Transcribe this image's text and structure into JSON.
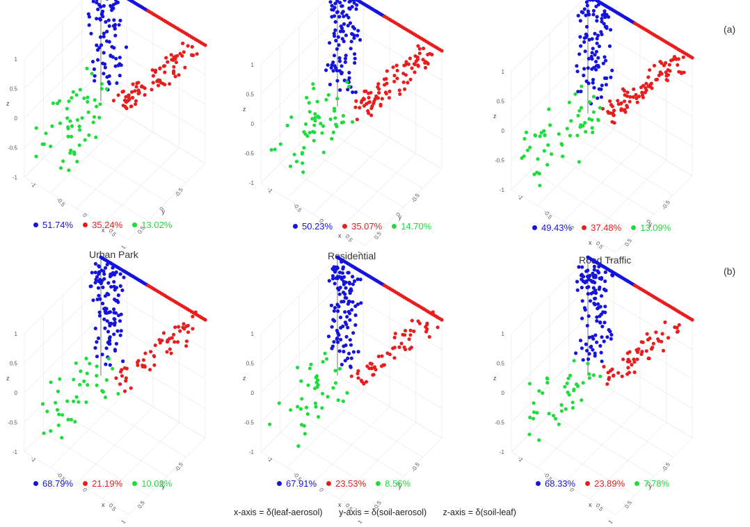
{
  "row_labels": {
    "a": "(a)",
    "b": "(b)"
  },
  "site_labels": [
    "Urban Park",
    "Residential",
    "Road Traffic"
  ],
  "footer": {
    "x_axis": "x-axis = δ(leaf-aerosol)",
    "y_axis": "y-axis = δ(soil-aerosol)",
    "z_axis": "z-axis = δ(soil-leaf)"
  },
  "colors": {
    "blue": "#1414dc",
    "red": "#e81e1e",
    "green": "#1edc3c"
  },
  "axis_text": {
    "x_label": "x",
    "y_label": "y",
    "z_label": "z",
    "z_ticks": [
      "1",
      "0.5",
      "0",
      "-0.5",
      "-1"
    ],
    "x_ticks": [
      "-1",
      "-0.5",
      "0",
      "0.5"
    ],
    "y_ticks": [
      "-0.5",
      "0",
      "0.5",
      "1"
    ]
  },
  "legends": [
    {
      "blue": "51.74%",
      "red": "35.24%",
      "green": "13.02%"
    },
    {
      "blue": "50.23%",
      "red": "35.07%",
      "green": "14.70%"
    },
    {
      "blue": "49.43%",
      "red": "37.48%",
      "green": "13.09%"
    },
    {
      "blue": "68.79%",
      "red": "21.19%",
      "green": "10.02%"
    },
    {
      "blue": "67.91%",
      "red": "23.53%",
      "green": "8.56%"
    },
    {
      "blue": "68.33%",
      "red": "23.89%",
      "green": "7.78%"
    }
  ],
  "chart_data": [
    {
      "type": "scatter",
      "row": "(a)",
      "site": "Urban Park",
      "series": [
        {
          "name": "",
          "share": "51.74%",
          "color": "#1414dc"
        },
        {
          "name": "",
          "share": "35.24%",
          "color": "#e81e1e"
        },
        {
          "name": "",
          "share": "13.02%",
          "color": "#1edc3c"
        }
      ],
      "xlim": [
        -1,
        1
      ],
      "ylim": [
        -1,
        1
      ],
      "zlim": [
        -1,
        1
      ]
    },
    {
      "type": "scatter",
      "row": "(a)",
      "site": "Residential",
      "series": [
        {
          "name": "",
          "share": "50.23%",
          "color": "#1414dc"
        },
        {
          "name": "",
          "share": "35.07%",
          "color": "#e81e1e"
        },
        {
          "name": "",
          "share": "14.70%",
          "color": "#1edc3c"
        }
      ],
      "xlim": [
        -1,
        1
      ],
      "ylim": [
        -1,
        1
      ],
      "zlim": [
        -1,
        1
      ]
    },
    {
      "type": "scatter",
      "row": "(a)",
      "site": "Road Traffic",
      "series": [
        {
          "name": "",
          "share": "49.43%",
          "color": "#1414dc"
        },
        {
          "name": "",
          "share": "37.48%",
          "color": "#e81e1e"
        },
        {
          "name": "",
          "share": "13.09%",
          "color": "#1edc3c"
        }
      ],
      "xlim": [
        -1,
        1
      ],
      "ylim": [
        -1,
        1
      ],
      "zlim": [
        -1,
        1
      ]
    },
    {
      "type": "scatter",
      "row": "(b)",
      "site": "Urban Park",
      "series": [
        {
          "name": "",
          "share": "68.79%",
          "color": "#1414dc"
        },
        {
          "name": "",
          "share": "21.19%",
          "color": "#e81e1e"
        },
        {
          "name": "",
          "share": "10.02%",
          "color": "#1edc3c"
        }
      ],
      "xlim": [
        -1,
        1
      ],
      "ylim": [
        -1,
        1
      ],
      "zlim": [
        -1,
        1
      ]
    },
    {
      "type": "scatter",
      "row": "(b)",
      "site": "Residential",
      "series": [
        {
          "name": "",
          "share": "67.91%",
          "color": "#1414dc"
        },
        {
          "name": "",
          "share": "23.53%",
          "color": "#e81e1e"
        },
        {
          "name": "",
          "share": "8.56%",
          "color": "#1edc3c"
        }
      ],
      "xlim": [
        -1,
        1
      ],
      "ylim": [
        -1,
        1
      ],
      "zlim": [
        -1,
        1
      ]
    },
    {
      "type": "scatter",
      "row": "(b)",
      "site": "Road Traffic",
      "series": [
        {
          "name": "",
          "share": "68.33%",
          "color": "#1414dc"
        },
        {
          "name": "",
          "share": "23.89%",
          "color": "#e81e1e"
        },
        {
          "name": "",
          "share": "7.78%",
          "color": "#1edc3c"
        }
      ],
      "xlim": [
        -1,
        1
      ],
      "ylim": [
        -1,
        1
      ],
      "zlim": [
        -1,
        1
      ]
    }
  ]
}
